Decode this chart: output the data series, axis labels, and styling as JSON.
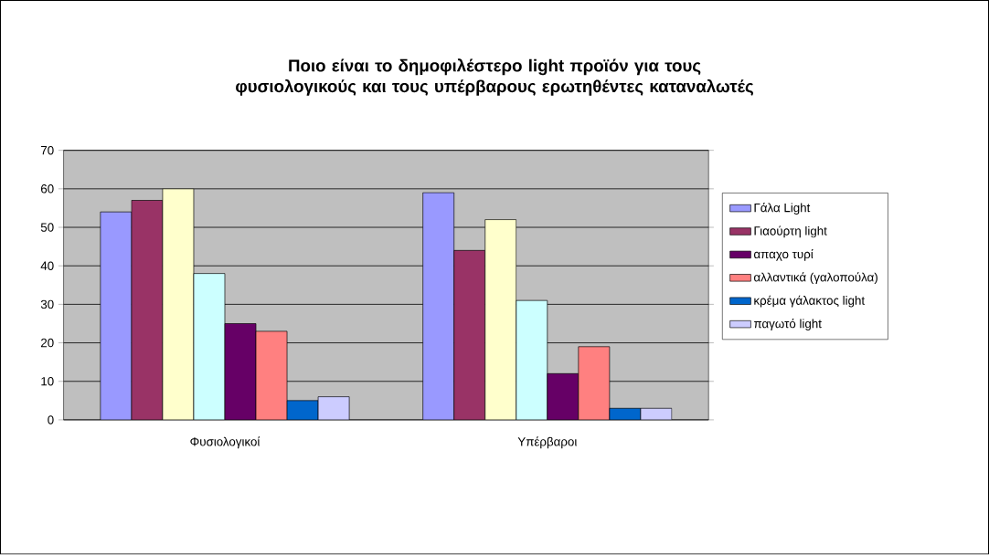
{
  "chart_data": {
    "type": "bar",
    "title": "Ποιο είναι το δημοφιλέστερο light προϊόν για τους φυσιολογικούς και τους υπέρβαρους ερωτηθέντες καταναλωτές",
    "categories": [
      "Φυσιολογικοί",
      "Υπέρβαροι"
    ],
    "series": [
      {
        "name": "Γάλα Light",
        "color": "#9999ff",
        "values": [
          54,
          59
        ]
      },
      {
        "name": "Γιαούρτη light",
        "color": "#993366",
        "values": [
          57,
          44
        ]
      },
      {
        "color": "#ffffcc",
        "values": [
          60,
          52
        ]
      },
      {
        "color": "#ccffff",
        "values": [
          38,
          31
        ]
      },
      {
        "name": "απαχο τυρί",
        "color": "#660066",
        "values": [
          25,
          12
        ]
      },
      {
        "name": "αλλαντικά (γαλοπούλα)",
        "color": "#ff8080",
        "values": [
          23,
          19
        ]
      },
      {
        "name": "κρέμα γάλακτος light",
        "color": "#0066cc",
        "values": [
          5,
          3
        ]
      },
      {
        "name": "παγωτό light",
        "color": "#ccccff",
        "values": [
          6,
          3
        ]
      }
    ],
    "ylim": [
      0,
      70
    ],
    "yticks": [
      0,
      10,
      20,
      30,
      40,
      50,
      60,
      70
    ],
    "grid": "y",
    "legend": "right"
  }
}
